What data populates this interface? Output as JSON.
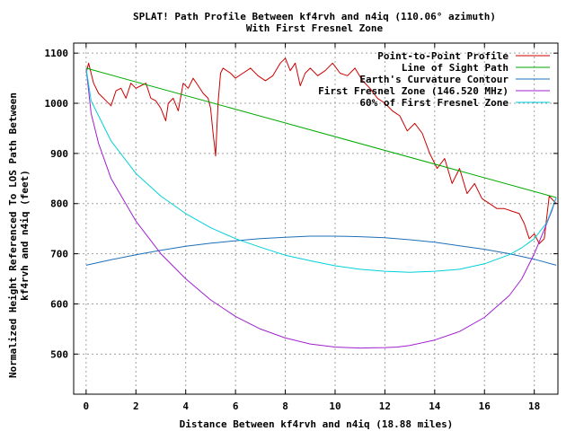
{
  "chart_data": {
    "type": "line",
    "title": "SPLAT! Path Profile Between kf4rvh and n4iq (110.06° azimuth)",
    "subtitle": "With First Fresnel Zone",
    "xlabel": "Distance Between kf4rvh and n4iq (18.88 miles)",
    "ylabel_line1": "Normalized Height Referenced To LOS Path Between",
    "ylabel_line2": "kf4rvh and n4iq (feet)",
    "xlim": [
      -0.5,
      18.95
    ],
    "ylim": [
      420,
      1120
    ],
    "x_ticks": [
      0,
      2,
      4,
      6,
      8,
      10,
      12,
      14,
      16,
      18
    ],
    "y_ticks": [
      500,
      600,
      700,
      800,
      900,
      1000,
      1100
    ],
    "grid": true,
    "legend_position": "top-right",
    "series": [
      {
        "name": "Point-to-Point Profile",
        "color": "#cc0000",
        "x": [
          0,
          0.1,
          0.3,
          0.5,
          0.8,
          1.0,
          1.2,
          1.4,
          1.6,
          1.8,
          2.0,
          2.2,
          2.4,
          2.6,
          2.8,
          3.0,
          3.2,
          3.3,
          3.5,
          3.7,
          3.9,
          4.1,
          4.3,
          4.5,
          4.7,
          4.9,
          5.0,
          5.1,
          5.2,
          5.3,
          5.4,
          5.5,
          5.8,
          6.0,
          6.3,
          6.6,
          6.9,
          7.2,
          7.5,
          7.8,
          8.0,
          8.2,
          8.4,
          8.6,
          8.8,
          9.0,
          9.3,
          9.6,
          9.9,
          10.2,
          10.5,
          10.8,
          11.1,
          11.4,
          11.7,
          12.0,
          12.3,
          12.6,
          12.9,
          13.2,
          13.5,
          13.8,
          14.1,
          14.4,
          14.7,
          15.0,
          15.3,
          15.6,
          15.9,
          16.2,
          16.5,
          16.8,
          17.1,
          17.4,
          17.6,
          17.8,
          18.0,
          18.2,
          18.4,
          18.6,
          18.88
        ],
        "y": [
          1060,
          1080,
          1040,
          1020,
          1005,
          995,
          1025,
          1030,
          1010,
          1040,
          1030,
          1035,
          1040,
          1010,
          1005,
          990,
          965,
          1000,
          1010,
          985,
          1040,
          1030,
          1050,
          1035,
          1020,
          1010,
          990,
          940,
          895,
          1000,
          1060,
          1070,
          1060,
          1050,
          1060,
          1070,
          1055,
          1045,
          1055,
          1080,
          1090,
          1065,
          1080,
          1035,
          1060,
          1070,
          1055,
          1065,
          1080,
          1060,
          1055,
          1070,
          1045,
          1030,
          1010,
          1000,
          985,
          975,
          945,
          960,
          940,
          900,
          870,
          890,
          840,
          870,
          820,
          840,
          810,
          800,
          790,
          790,
          785,
          780,
          760,
          730,
          740,
          720,
          730,
          815,
          800
        ]
      },
      {
        "name": "Line of Sight Path",
        "color": "#00aa00",
        "x": [
          0,
          18.88
        ],
        "y": [
          1070,
          812
        ]
      },
      {
        "name": "Earth's Curvature Contour",
        "color": "#1e6fb8",
        "x": [
          0,
          1,
          2,
          3,
          4,
          5,
          6,
          7,
          8,
          9,
          9.44,
          10,
          11,
          12,
          13,
          14,
          15,
          16,
          17,
          18,
          18.88
        ],
        "y": [
          677,
          688,
          698,
          707,
          715,
          721,
          726,
          730,
          733,
          735,
          735,
          735,
          734,
          732,
          728,
          723,
          716,
          709,
          700,
          689,
          677
        ]
      },
      {
        "name": "First Fresnel Zone (146.520 MHz)",
        "color": "#a020d0",
        "x": [
          0,
          0.2,
          0.5,
          1,
          2,
          3,
          4,
          5,
          6,
          7,
          8,
          9,
          10,
          11,
          12,
          12.5,
          13,
          14,
          15,
          16,
          17,
          17.5,
          18,
          18.5,
          18.7,
          18.88
        ],
        "y": [
          1070,
          980,
          920,
          850,
          765,
          700,
          650,
          608,
          575,
          550,
          532,
          520,
          514,
          512,
          513,
          514,
          517,
          528,
          545,
          573,
          617,
          650,
          700,
          760,
          785,
          812
        ]
      },
      {
        "name": "60% of First Fresnel Zone",
        "color": "#00d0d8",
        "x": [
          0,
          0.2,
          0.5,
          1,
          2,
          3,
          4,
          5,
          6,
          7,
          8,
          9,
          10,
          11,
          12,
          13,
          14,
          15,
          16,
          17,
          17.5,
          18,
          18.5,
          18.88
        ],
        "y": [
          1070,
          1005,
          975,
          925,
          860,
          815,
          780,
          752,
          730,
          713,
          697,
          686,
          676,
          669,
          665,
          663,
          665,
          669,
          680,
          698,
          712,
          730,
          762,
          812
        ]
      }
    ]
  }
}
